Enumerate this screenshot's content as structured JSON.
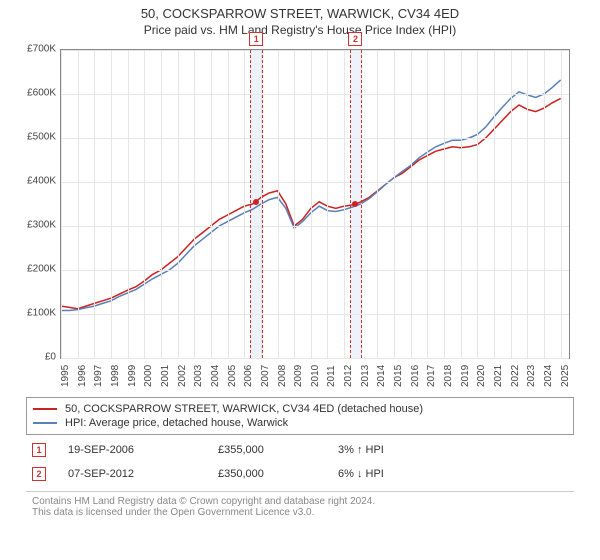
{
  "title": "50, COCKSPARROW STREET, WARWICK, CV34 4ED",
  "subtitle": "Price paid vs. HM Land Registry's House Price Index (HPI)",
  "chart": {
    "type": "line",
    "background_color": "#ffffff",
    "grid_color": "#e6e6e6",
    "axis_color": "#888888",
    "x_years": [
      1995,
      1996,
      1997,
      1998,
      1999,
      2000,
      2001,
      2002,
      2003,
      2004,
      2005,
      2006,
      2007,
      2008,
      2009,
      2010,
      2011,
      2012,
      2013,
      2014,
      2015,
      2016,
      2017,
      2018,
      2019,
      2020,
      2021,
      2022,
      2023,
      2024,
      2025
    ],
    "y_ticks": [
      0,
      100000,
      200000,
      300000,
      400000,
      500000,
      600000,
      700000
    ],
    "y_labels": [
      "£0",
      "£100K",
      "£200K",
      "£300K",
      "£400K",
      "£500K",
      "£600K",
      "£700K"
    ],
    "ylim": [
      0,
      700000
    ],
    "xlim": [
      1995,
      2025.5
    ],
    "series": [
      {
        "name": "property",
        "label": "50, COCKSPARROW STREET, WARWICK, CV34 4ED (detached house)",
        "color": "#cc2222",
        "line_width": 1.5,
        "points": [
          [
            1995.0,
            118000
          ],
          [
            1995.5,
            115000
          ],
          [
            1996.0,
            112000
          ],
          [
            1996.5,
            118000
          ],
          [
            1997.0,
            124000
          ],
          [
            1997.5,
            130000
          ],
          [
            1998.0,
            136000
          ],
          [
            1998.5,
            145000
          ],
          [
            1999.0,
            154000
          ],
          [
            1999.5,
            162000
          ],
          [
            2000.0,
            175000
          ],
          [
            2000.5,
            190000
          ],
          [
            2001.0,
            200000
          ],
          [
            2001.5,
            215000
          ],
          [
            2002.0,
            230000
          ],
          [
            2002.5,
            250000
          ],
          [
            2003.0,
            270000
          ],
          [
            2003.5,
            285000
          ],
          [
            2004.0,
            300000
          ],
          [
            2004.5,
            315000
          ],
          [
            2005.0,
            325000
          ],
          [
            2005.5,
            335000
          ],
          [
            2006.0,
            345000
          ],
          [
            2006.5,
            350000
          ],
          [
            2006.7,
            355000
          ],
          [
            2007.0,
            365000
          ],
          [
            2007.5,
            375000
          ],
          [
            2008.0,
            380000
          ],
          [
            2008.5,
            350000
          ],
          [
            2009.0,
            300000
          ],
          [
            2009.5,
            315000
          ],
          [
            2010.0,
            340000
          ],
          [
            2010.5,
            355000
          ],
          [
            2011.0,
            345000
          ],
          [
            2011.5,
            340000
          ],
          [
            2012.0,
            345000
          ],
          [
            2012.5,
            348000
          ],
          [
            2012.7,
            350000
          ],
          [
            2013.0,
            355000
          ],
          [
            2013.5,
            365000
          ],
          [
            2014.0,
            380000
          ],
          [
            2014.5,
            395000
          ],
          [
            2015.0,
            410000
          ],
          [
            2015.5,
            420000
          ],
          [
            2016.0,
            435000
          ],
          [
            2016.5,
            450000
          ],
          [
            2017.0,
            460000
          ],
          [
            2017.5,
            470000
          ],
          [
            2018.0,
            475000
          ],
          [
            2018.5,
            480000
          ],
          [
            2019.0,
            478000
          ],
          [
            2019.5,
            480000
          ],
          [
            2020.0,
            485000
          ],
          [
            2020.5,
            500000
          ],
          [
            2021.0,
            520000
          ],
          [
            2021.5,
            540000
          ],
          [
            2022.0,
            560000
          ],
          [
            2022.5,
            575000
          ],
          [
            2023.0,
            565000
          ],
          [
            2023.5,
            560000
          ],
          [
            2024.0,
            568000
          ],
          [
            2024.5,
            580000
          ],
          [
            2025.0,
            590000
          ]
        ]
      },
      {
        "name": "hpi",
        "label": "HPI: Average price, detached house, Warwick",
        "color": "#5b7fb8",
        "line_width": 1.5,
        "points": [
          [
            1995.0,
            108000
          ],
          [
            1995.5,
            108000
          ],
          [
            1996.0,
            110000
          ],
          [
            1996.5,
            114000
          ],
          [
            1997.0,
            118000
          ],
          [
            1997.5,
            124000
          ],
          [
            1998.0,
            130000
          ],
          [
            1998.5,
            140000
          ],
          [
            1999.0,
            148000
          ],
          [
            1999.5,
            156000
          ],
          [
            2000.0,
            168000
          ],
          [
            2000.5,
            180000
          ],
          [
            2001.0,
            190000
          ],
          [
            2001.5,
            200000
          ],
          [
            2002.0,
            215000
          ],
          [
            2002.5,
            235000
          ],
          [
            2003.0,
            255000
          ],
          [
            2003.5,
            270000
          ],
          [
            2004.0,
            285000
          ],
          [
            2004.5,
            300000
          ],
          [
            2005.0,
            310000
          ],
          [
            2005.5,
            320000
          ],
          [
            2006.0,
            330000
          ],
          [
            2006.5,
            338000
          ],
          [
            2007.0,
            350000
          ],
          [
            2007.5,
            360000
          ],
          [
            2008.0,
            365000
          ],
          [
            2008.5,
            340000
          ],
          [
            2009.0,
            295000
          ],
          [
            2009.5,
            310000
          ],
          [
            2010.0,
            330000
          ],
          [
            2010.5,
            345000
          ],
          [
            2011.0,
            335000
          ],
          [
            2011.5,
            333000
          ],
          [
            2012.0,
            337000
          ],
          [
            2012.5,
            343000
          ],
          [
            2013.0,
            350000
          ],
          [
            2013.5,
            362000
          ],
          [
            2014.0,
            378000
          ],
          [
            2014.5,
            395000
          ],
          [
            2015.0,
            410000
          ],
          [
            2015.5,
            424000
          ],
          [
            2016.0,
            438000
          ],
          [
            2016.5,
            455000
          ],
          [
            2017.0,
            468000
          ],
          [
            2017.5,
            480000
          ],
          [
            2018.0,
            488000
          ],
          [
            2018.5,
            495000
          ],
          [
            2019.0,
            495000
          ],
          [
            2019.5,
            500000
          ],
          [
            2020.0,
            508000
          ],
          [
            2020.5,
            525000
          ],
          [
            2021.0,
            548000
          ],
          [
            2021.5,
            570000
          ],
          [
            2022.0,
            590000
          ],
          [
            2022.5,
            605000
          ],
          [
            2023.0,
            598000
          ],
          [
            2023.5,
            592000
          ],
          [
            2024.0,
            600000
          ],
          [
            2024.5,
            615000
          ],
          [
            2025.0,
            632000
          ]
        ]
      }
    ],
    "markers": [
      {
        "id": "1",
        "x": 2006.72,
        "y": 355000,
        "color": "#cc2222",
        "band_color": "#eef2fb"
      },
      {
        "id": "2",
        "x": 2012.68,
        "y": 350000,
        "color": "#cc2222",
        "band_color": "#eef2fb"
      }
    ],
    "band_halfwidth_years": 0.35
  },
  "legend": {
    "items": [
      {
        "color": "#cc2222",
        "label": "50, COCKSPARROW STREET, WARWICK, CV34 4ED (detached house)"
      },
      {
        "color": "#5b7fb8",
        "label": "HPI: Average price, detached house, Warwick"
      }
    ]
  },
  "sales": [
    {
      "id": "1",
      "date": "19-SEP-2006",
      "price": "£355,000",
      "delta": "3% ↑ HPI"
    },
    {
      "id": "2",
      "date": "07-SEP-2012",
      "price": "£350,000",
      "delta": "6% ↓ HPI"
    }
  ],
  "footer": {
    "line1": "Contains HM Land Registry data © Crown copyright and database right 2024.",
    "line2": "This data is licensed under the Open Government Licence v3.0."
  }
}
